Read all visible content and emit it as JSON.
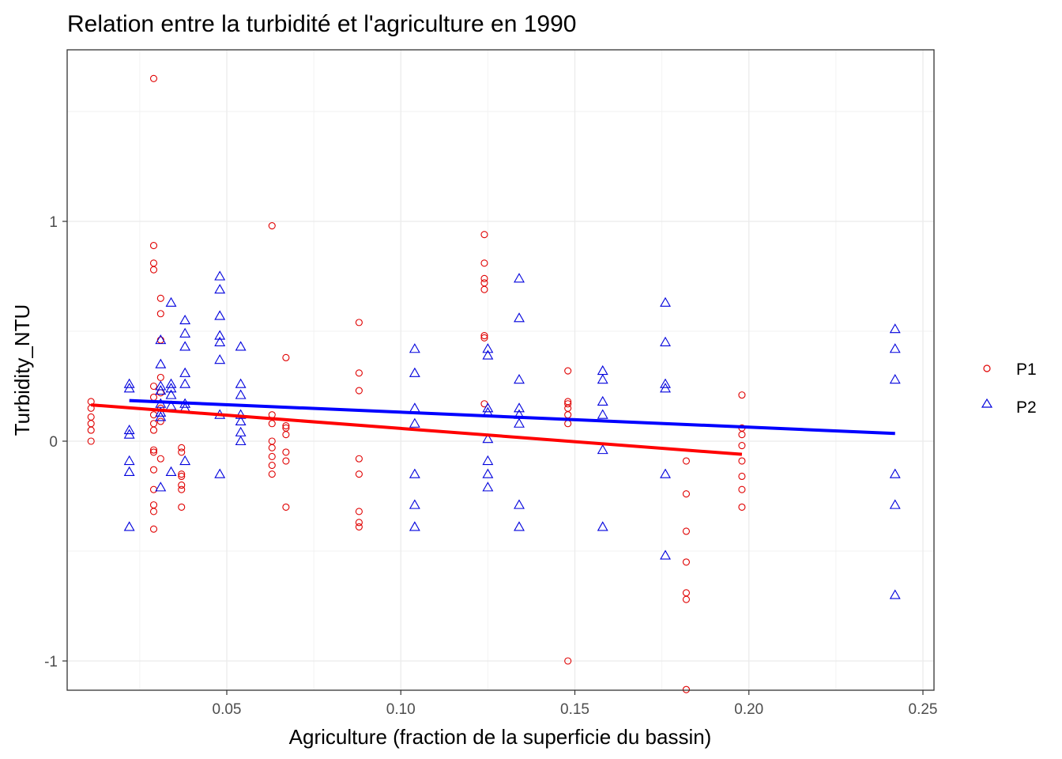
{
  "chart_data": {
    "type": "scatter",
    "title": "Relation entre la turbidité et l'agriculture en 1990",
    "xlabel": "Agriculture (fraction de la superficie du bassin)",
    "ylabel": "Turbidity_NTU",
    "xlim": [
      0.0,
      0.25
    ],
    "ylim": [
      -1.13,
      1.7
    ],
    "x_ticks": [
      0.05,
      0.1,
      0.15,
      0.2,
      0.25
    ],
    "x_tick_labels": [
      "0.05",
      "0.10",
      "0.15",
      "0.20",
      "0.25"
    ],
    "y_ticks": [
      -1,
      0,
      1
    ],
    "y_tick_labels": [
      "-1",
      "0",
      "1"
    ],
    "grid": true,
    "legend": {
      "placement": "right",
      "entries": [
        "P1",
        "P2"
      ]
    },
    "colors": {
      "P1": "#e00000",
      "P2": "#0000dd",
      "P1_line": "#ff0000",
      "P2_line": "#0000ff"
    },
    "series": [
      {
        "name": "P1",
        "marker": "circle",
        "points": [
          [
            0.011,
            0.18
          ],
          [
            0.011,
            0.15
          ],
          [
            0.011,
            0.11
          ],
          [
            0.011,
            0.08
          ],
          [
            0.011,
            0.05
          ],
          [
            0.011,
            0.0
          ],
          [
            0.029,
            1.65
          ],
          [
            0.029,
            0.89
          ],
          [
            0.029,
            0.81
          ],
          [
            0.029,
            0.78
          ],
          [
            0.029,
            0.25
          ],
          [
            0.029,
            0.2
          ],
          [
            0.029,
            0.12
          ],
          [
            0.029,
            0.08
          ],
          [
            0.029,
            0.05
          ],
          [
            0.029,
            -0.04
          ],
          [
            0.029,
            -0.05
          ],
          [
            0.029,
            -0.13
          ],
          [
            0.029,
            -0.22
          ],
          [
            0.029,
            -0.29
          ],
          [
            0.029,
            -0.32
          ],
          [
            0.029,
            -0.4
          ],
          [
            0.031,
            0.65
          ],
          [
            0.031,
            0.58
          ],
          [
            0.031,
            0.46
          ],
          [
            0.031,
            0.29
          ],
          [
            0.031,
            0.22
          ],
          [
            0.031,
            0.15
          ],
          [
            0.031,
            0.09
          ],
          [
            0.031,
            -0.08
          ],
          [
            0.037,
            -0.03
          ],
          [
            0.037,
            -0.05
          ],
          [
            0.037,
            -0.15
          ],
          [
            0.037,
            -0.16
          ],
          [
            0.037,
            -0.2
          ],
          [
            0.037,
            -0.22
          ],
          [
            0.037,
            -0.3
          ],
          [
            0.063,
            0.98
          ],
          [
            0.063,
            0.12
          ],
          [
            0.063,
            0.08
          ],
          [
            0.063,
            0.0
          ],
          [
            0.063,
            -0.03
          ],
          [
            0.063,
            -0.07
          ],
          [
            0.063,
            -0.11
          ],
          [
            0.063,
            -0.15
          ],
          [
            0.067,
            0.38
          ],
          [
            0.067,
            0.07
          ],
          [
            0.067,
            0.06
          ],
          [
            0.067,
            0.03
          ],
          [
            0.067,
            -0.05
          ],
          [
            0.067,
            -0.09
          ],
          [
            0.067,
            -0.3
          ],
          [
            0.088,
            0.54
          ],
          [
            0.088,
            0.31
          ],
          [
            0.088,
            0.23
          ],
          [
            0.088,
            -0.08
          ],
          [
            0.088,
            -0.15
          ],
          [
            0.088,
            -0.32
          ],
          [
            0.088,
            -0.37
          ],
          [
            0.088,
            -0.39
          ],
          [
            0.124,
            0.94
          ],
          [
            0.124,
            0.81
          ],
          [
            0.124,
            0.74
          ],
          [
            0.124,
            0.72
          ],
          [
            0.124,
            0.69
          ],
          [
            0.124,
            0.48
          ],
          [
            0.124,
            0.47
          ],
          [
            0.124,
            0.17
          ],
          [
            0.148,
            0.32
          ],
          [
            0.148,
            0.18
          ],
          [
            0.148,
            0.17
          ],
          [
            0.148,
            0.15
          ],
          [
            0.148,
            0.12
          ],
          [
            0.148,
            0.08
          ],
          [
            0.148,
            -1.0
          ],
          [
            0.182,
            -0.09
          ],
          [
            0.182,
            -0.24
          ],
          [
            0.182,
            -0.41
          ],
          [
            0.182,
            -0.55
          ],
          [
            0.182,
            -0.69
          ],
          [
            0.182,
            -0.72
          ],
          [
            0.182,
            -1.13
          ],
          [
            0.198,
            0.21
          ],
          [
            0.198,
            0.06
          ],
          [
            0.198,
            0.03
          ],
          [
            0.198,
            -0.02
          ],
          [
            0.198,
            -0.09
          ],
          [
            0.198,
            -0.16
          ],
          [
            0.198,
            -0.22
          ],
          [
            0.198,
            -0.3
          ]
        ]
      },
      {
        "name": "P2",
        "marker": "triangle",
        "points": [
          [
            0.022,
            0.26
          ],
          [
            0.022,
            0.24
          ],
          [
            0.022,
            0.05
          ],
          [
            0.022,
            0.03
          ],
          [
            0.022,
            -0.09
          ],
          [
            0.022,
            -0.14
          ],
          [
            0.022,
            -0.39
          ],
          [
            0.031,
            0.46
          ],
          [
            0.031,
            0.35
          ],
          [
            0.031,
            0.25
          ],
          [
            0.031,
            0.23
          ],
          [
            0.031,
            0.17
          ],
          [
            0.031,
            0.13
          ],
          [
            0.031,
            0.11
          ],
          [
            0.031,
            -0.21
          ],
          [
            0.034,
            0.63
          ],
          [
            0.034,
            0.26
          ],
          [
            0.034,
            0.24
          ],
          [
            0.034,
            0.21
          ],
          [
            0.034,
            0.16
          ],
          [
            0.034,
            -0.14
          ],
          [
            0.038,
            0.55
          ],
          [
            0.038,
            0.49
          ],
          [
            0.038,
            0.43
          ],
          [
            0.038,
            0.31
          ],
          [
            0.038,
            0.26
          ],
          [
            0.038,
            0.17
          ],
          [
            0.038,
            0.15
          ],
          [
            0.038,
            -0.09
          ],
          [
            0.048,
            0.75
          ],
          [
            0.048,
            0.69
          ],
          [
            0.048,
            0.57
          ],
          [
            0.048,
            0.48
          ],
          [
            0.048,
            0.45
          ],
          [
            0.048,
            0.37
          ],
          [
            0.048,
            0.12
          ],
          [
            0.048,
            -0.15
          ],
          [
            0.054,
            0.43
          ],
          [
            0.054,
            0.26
          ],
          [
            0.054,
            0.21
          ],
          [
            0.054,
            0.12
          ],
          [
            0.054,
            0.09
          ],
          [
            0.054,
            0.04
          ],
          [
            0.054,
            0.0
          ],
          [
            0.104,
            0.42
          ],
          [
            0.104,
            0.31
          ],
          [
            0.104,
            0.15
          ],
          [
            0.104,
            0.08
          ],
          [
            0.104,
            -0.15
          ],
          [
            0.104,
            -0.29
          ],
          [
            0.104,
            -0.39
          ],
          [
            0.125,
            0.42
          ],
          [
            0.125,
            0.39
          ],
          [
            0.125,
            0.15
          ],
          [
            0.125,
            0.13
          ],
          [
            0.125,
            0.01
          ],
          [
            0.125,
            -0.09
          ],
          [
            0.125,
            -0.15
          ],
          [
            0.125,
            -0.21
          ],
          [
            0.134,
            0.74
          ],
          [
            0.134,
            0.56
          ],
          [
            0.134,
            0.28
          ],
          [
            0.134,
            0.15
          ],
          [
            0.134,
            0.12
          ],
          [
            0.134,
            0.08
          ],
          [
            0.134,
            -0.29
          ],
          [
            0.134,
            -0.39
          ],
          [
            0.158,
            0.32
          ],
          [
            0.158,
            0.28
          ],
          [
            0.158,
            0.18
          ],
          [
            0.158,
            0.12
          ],
          [
            0.158,
            -0.04
          ],
          [
            0.158,
            -0.39
          ],
          [
            0.176,
            0.63
          ],
          [
            0.176,
            0.45
          ],
          [
            0.176,
            0.26
          ],
          [
            0.176,
            0.24
          ],
          [
            0.176,
            -0.15
          ],
          [
            0.176,
            -0.52
          ],
          [
            0.242,
            0.51
          ],
          [
            0.242,
            0.42
          ],
          [
            0.242,
            0.28
          ],
          [
            0.242,
            -0.15
          ],
          [
            0.242,
            -0.29
          ],
          [
            0.242,
            -0.7
          ]
        ]
      }
    ],
    "trend_lines": [
      {
        "name": "P1",
        "x": [
          0.011,
          0.198
        ],
        "y": [
          0.165,
          -0.06
        ]
      },
      {
        "name": "P2",
        "x": [
          0.022,
          0.242
        ],
        "y": [
          0.185,
          0.035
        ]
      }
    ]
  }
}
